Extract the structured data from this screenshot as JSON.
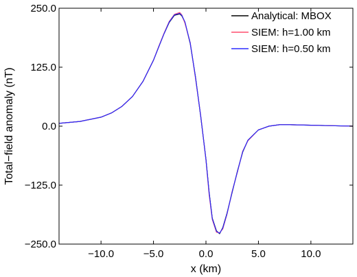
{
  "chart_data": {
    "type": "line",
    "title": "",
    "xlabel": "x (km)",
    "ylabel": "Total−field anomaly (nT)",
    "xlim": [
      -14,
      14
    ],
    "ylim": [
      -250,
      250
    ],
    "xticks": [
      -10,
      -5,
      0,
      5,
      10
    ],
    "xtick_labels": [
      "−10.0",
      "−5.0",
      "0.0",
      "5.0",
      "10.0"
    ],
    "yticks": [
      250,
      125,
      0,
      -125,
      -250
    ],
    "ytick_labels": [
      "250.0",
      "125.0",
      "0.0",
      "−125.0",
      "−250.0"
    ],
    "grid": false,
    "legend_position": "top-right",
    "x": [
      -14,
      -12,
      -10,
      -9,
      -8,
      -7,
      -6,
      -5,
      -4.5,
      -4,
      -3.5,
      -3,
      -2.5,
      -2.3,
      -2,
      -1.5,
      -1,
      -0.5,
      0,
      0.3,
      0.6,
      1,
      1.3,
      1.6,
      2,
      2.5,
      3,
      3.5,
      4,
      5,
      6,
      7,
      8,
      10,
      12,
      14
    ],
    "series": [
      {
        "name": "Analytical: MBOX",
        "color": "#000000",
        "values": [
          6,
          10,
          19,
          28,
          42,
          63,
          95,
          140,
          168,
          196,
          220,
          235,
          238,
          234,
          220,
          175,
          105,
          20,
          -70,
          -140,
          -195,
          -222,
          -228,
          -215,
          -185,
          -140,
          -95,
          -55,
          -30,
          -8,
          0,
          3,
          3,
          2,
          1,
          0
        ]
      },
      {
        "name": "SIEM: h=1.00 km",
        "color": "#ff4d6d",
        "values": [
          6,
          10,
          19,
          28,
          42,
          63,
          95,
          140,
          169,
          197,
          222,
          237,
          241,
          236,
          218,
          177,
          102,
          22,
          -72,
          -145,
          -198,
          -225,
          -226,
          -218,
          -187,
          -138,
          -97,
          -53,
          -31,
          -8,
          0,
          3,
          3,
          2,
          1,
          0
        ]
      },
      {
        "name": "SIEM: h=0.50 km",
        "color": "#2a2aff",
        "values": [
          6,
          10,
          19,
          28,
          42,
          63,
          95,
          140,
          168,
          196,
          221,
          236,
          239,
          235,
          221,
          176,
          104,
          21,
          -71,
          -141,
          -196,
          -223,
          -227,
          -216,
          -186,
          -139,
          -96,
          -54,
          -30,
          -8,
          0,
          3,
          3,
          2,
          1,
          0
        ]
      }
    ]
  }
}
